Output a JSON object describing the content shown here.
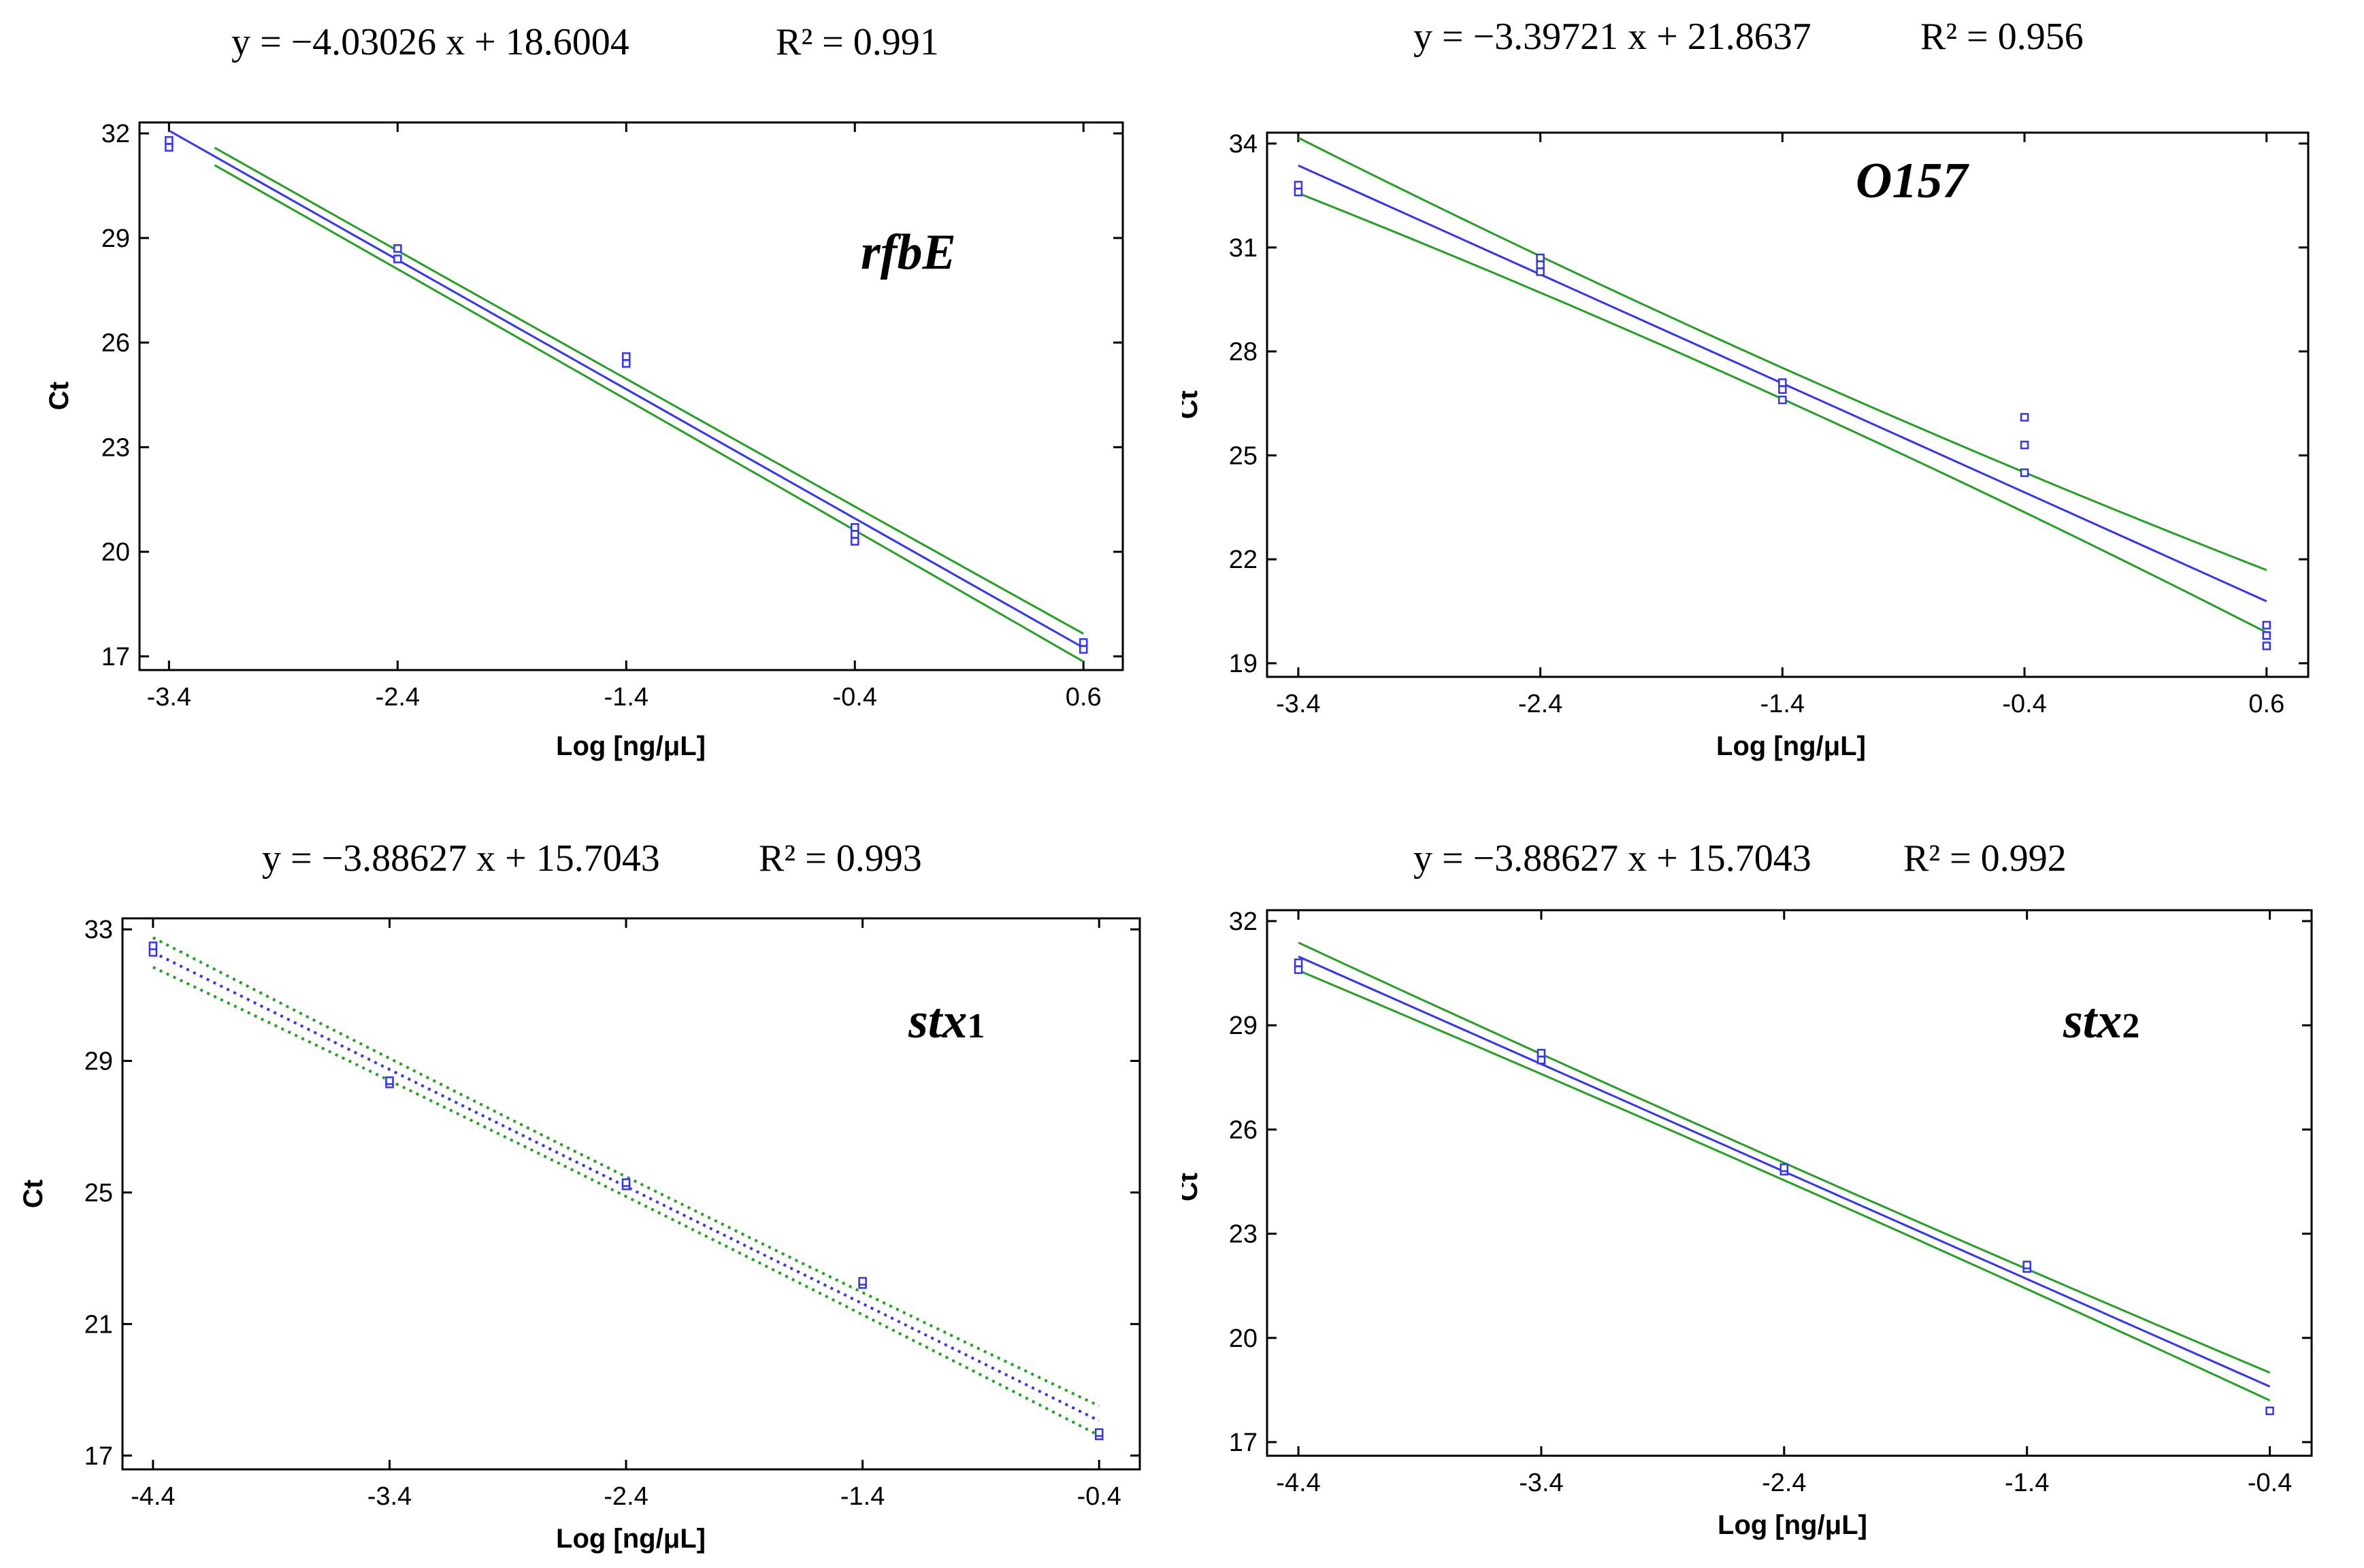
{
  "chart_data": [
    {
      "type": "scatter",
      "gene": "rfbE",
      "equation": "y = −4.03026 x + 18.6004",
      "r2_label": "R² = 0.991",
      "xlabel": "Log [ng/μL]",
      "ylabel": "Ct",
      "xlim": [
        -3.4,
        0.6
      ],
      "ylim": [
        17,
        32
      ],
      "xticks": [
        "-3.4",
        "-2.4",
        "-1.4",
        "-0.4",
        "0.6"
      ],
      "yticks": [
        "17",
        "20",
        "23",
        "26",
        "29",
        "32"
      ],
      "x": [
        -3.4,
        -3.4,
        -2.4,
        -2.4,
        -1.4,
        -1.4,
        -0.4,
        -0.4,
        -0.4,
        0.6,
        0.6
      ],
      "y": [
        31.6,
        31.8,
        28.4,
        28.7,
        25.4,
        25.6,
        20.3,
        20.5,
        20.7,
        17.2,
        17.4
      ],
      "fit": {
        "slope": -4.03026,
        "intercept": 18.6004,
        "x_range": [
          -3.4,
          0.6
        ]
      },
      "confidence_band": {
        "x_range": [
          -3.2,
          0.6
        ],
        "half_width": [
          0.25,
          0.3,
          0.4
        ],
        "style": "solid"
      },
      "colors": {
        "points": "#3333ff",
        "fit": "#3333ff",
        "band": "#22a022"
      }
    },
    {
      "type": "scatter",
      "gene": "O157",
      "equation": "y = −3.39721 x + 21.8637",
      "r2_label": "R² = 0.956",
      "xlabel": "Log [ng/μL]",
      "ylabel": "Ct",
      "xlim": [
        -3.4,
        0.6
      ],
      "ylim": [
        19,
        34
      ],
      "xticks": [
        "-3.4",
        "-2.4",
        "-1.4",
        "-0.4",
        "0.6"
      ],
      "yticks": [
        "19",
        "22",
        "25",
        "28",
        "31",
        "34"
      ],
      "x": [
        -3.4,
        -3.4,
        -2.4,
        -2.4,
        -2.4,
        -1.4,
        -1.4,
        -1.4,
        -0.4,
        -0.4,
        -0.4,
        0.6,
        0.6,
        0.6
      ],
      "y": [
        32.6,
        32.8,
        30.3,
        30.5,
        30.7,
        26.6,
        26.9,
        27.1,
        24.5,
        25.3,
        26.1,
        19.5,
        19.8,
        20.1
      ],
      "fit": {
        "slope": -3.39721,
        "intercept": 21.8637,
        "x_range": [
          -3.4,
          0.6
        ]
      },
      "confidence_band": {
        "x_range": [
          -3.4,
          0.6
        ],
        "half_width": [
          0.8,
          0.45,
          0.9
        ],
        "style": "solid"
      },
      "colors": {
        "points": "#3333ff",
        "fit": "#3333ff",
        "band": "#22a022"
      }
    },
    {
      "type": "scatter",
      "gene": "stx",
      "gene_subscript": "1",
      "equation": "y = −3.88627 x + 15.7043",
      "r2_label": "R² = 0.993",
      "xlabel": "Log [ng/μL]",
      "ylabel": "Ct",
      "xlim": [
        -4.4,
        -0.4
      ],
      "ylim": [
        17,
        33
      ],
      "xticks": [
        "-4.4",
        "-3.4",
        "-2.4",
        "-1.4",
        "-0.4"
      ],
      "yticks": [
        "17",
        "21",
        "25",
        "29",
        "33"
      ],
      "x": [
        -4.4,
        -4.4,
        -3.4,
        -3.4,
        -2.4,
        -2.4,
        -1.4,
        -1.4,
        -0.4,
        -0.4
      ],
      "y": [
        32.3,
        32.5,
        28.3,
        28.4,
        25.2,
        25.3,
        22.2,
        22.3,
        17.6,
        17.7
      ],
      "fit": {
        "slope": -3.88627,
        "intercept": 15.7043,
        "x_range": [
          -4.4,
          -0.4
        ]
      },
      "confidence_band": {
        "x_range": [
          -4.4,
          -0.4
        ],
        "half_width": [
          0.45,
          0.3,
          0.45
        ],
        "style": "dotted"
      },
      "colors": {
        "points": "#3333ff",
        "fit": "#3333ff",
        "band": "#22a022"
      }
    },
    {
      "type": "scatter",
      "gene": "stx",
      "gene_subscript": "2",
      "equation": "y = −3.88627 x + 15.7043",
      "r2_label": "R² = 0.992",
      "xlabel": "Log [ng/μL]",
      "ylabel": "Ct",
      "xlim": [
        -4.4,
        -0.4
      ],
      "ylim": [
        17,
        32
      ],
      "xticks": [
        "-4.4",
        "-3.4",
        "-2.4",
        "-1.4",
        "-0.4"
      ],
      "yticks": [
        "17",
        "20",
        "23",
        "26",
        "29",
        "32"
      ],
      "x": [
        -4.4,
        -4.4,
        -3.4,
        -3.4,
        -2.4,
        -2.4,
        -1.4,
        -1.4,
        -0.4
      ],
      "y": [
        30.6,
        30.8,
        28.0,
        28.2,
        24.8,
        24.9,
        22.0,
        22.1,
        17.9
      ],
      "fit": {
        "slope": -3.88627,
        "intercept": 15.7043,
        "x_range": [
          -4.4,
          -0.4
        ]
      },
      "confidence_band": {
        "x_range": [
          -4.4,
          -0.4
        ],
        "half_width": [
          0.4,
          0.25,
          0.4
        ],
        "style": "solid"
      },
      "colors": {
        "points": "#3333ff",
        "fit": "#3333ff",
        "band": "#22a022"
      }
    }
  ]
}
